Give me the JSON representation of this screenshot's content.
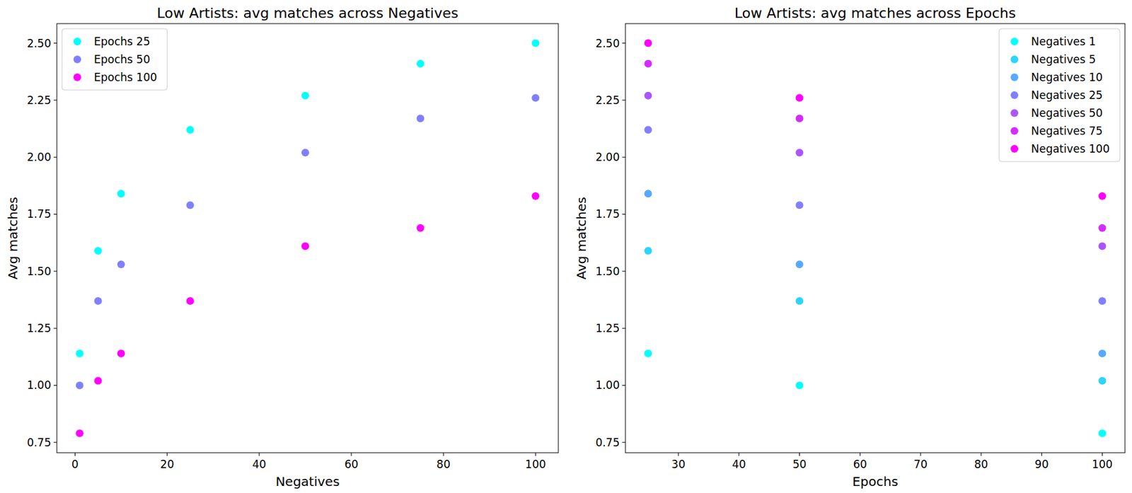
{
  "chart_data": [
    {
      "type": "scatter",
      "title": "Low Artists: avg matches across Negatives",
      "x_label": "Negatives",
      "y_label": "Avg matches",
      "x": [
        1,
        5,
        10,
        25,
        50,
        75,
        100
      ],
      "xlim": [
        -3.95,
        104.95
      ],
      "xticks": [
        0,
        20,
        40,
        60,
        80,
        100
      ],
      "ylim": [
        0.7045,
        2.5855
      ],
      "yticks": [
        0.75,
        {
          "value": 1.0,
          "label": "1.00"
        },
        1.25,
        {
          "value": 1.5,
          "label": "1.50"
        },
        1.75,
        {
          "value": 2.0,
          "label": "2.00"
        },
        2.25,
        {
          "value": 2.5,
          "label": "2.50"
        }
      ],
      "legend": "upper-left",
      "marker": "circle",
      "series": [
        {
          "name": "Epochs 25",
          "color": "#00ffff",
          "values": [
            1.14,
            1.59,
            1.84,
            2.12,
            2.27,
            2.41,
            2.5
          ]
        },
        {
          "name": "Epochs 50",
          "color": "#8080ff",
          "values": [
            1.0,
            1.37,
            1.53,
            1.79,
            2.02,
            2.17,
            2.26
          ]
        },
        {
          "name": "Epochs 100",
          "color": "#ff00ff",
          "values": [
            0.79,
            1.02,
            1.14,
            1.37,
            1.61,
            1.69,
            1.83
          ]
        }
      ]
    },
    {
      "type": "scatter",
      "title": "Low Artists: avg matches across Epochs",
      "x_label": "Epochs",
      "y_label": "Avg matches",
      "x": [
        25,
        50,
        100
      ],
      "xlim": [
        21.25,
        103.75
      ],
      "xticks": [
        30,
        40,
        50,
        60,
        70,
        80,
        90,
        100
      ],
      "ylim": [
        0.7045,
        2.5855
      ],
      "yticks": [
        0.75,
        {
          "value": 1.0,
          "label": "1.00"
        },
        1.25,
        {
          "value": 1.5,
          "label": "1.50"
        },
        1.75,
        {
          "value": 2.0,
          "label": "2.00"
        },
        2.25,
        {
          "value": 2.5,
          "label": "2.50"
        }
      ],
      "legend": "upper-right",
      "marker": "circle",
      "series": [
        {
          "name": "Negatives 1",
          "color": "#00ffff",
          "values": [
            1.14,
            1.0,
            0.79
          ]
        },
        {
          "name": "Negatives 5",
          "color": "#2ad5ff",
          "values": [
            1.59,
            1.37,
            1.02
          ]
        },
        {
          "name": "Negatives 10",
          "color": "#55aaff",
          "values": [
            1.84,
            1.53,
            1.14
          ]
        },
        {
          "name": "Negatives 25",
          "color": "#8080ff",
          "values": [
            2.12,
            1.79,
            1.37
          ]
        },
        {
          "name": "Negatives 50",
          "color": "#aa55ff",
          "values": [
            2.27,
            2.02,
            1.61
          ]
        },
        {
          "name": "Negatives 75",
          "color": "#d42bff",
          "values": [
            2.41,
            2.17,
            1.69
          ]
        },
        {
          "name": "Negatives 100",
          "color": "#ff00ff",
          "values": [
            2.5,
            2.26,
            1.83
          ]
        }
      ]
    }
  ]
}
